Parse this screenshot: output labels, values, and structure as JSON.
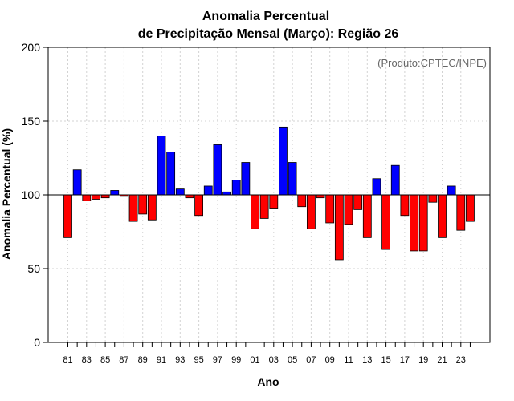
{
  "chart_data": {
    "type": "bar",
    "title_line1": "Anomalia Percentual",
    "title_line2": "de Precipitação Mensal (Março): Região 26",
    "xlabel": "Ano",
    "ylabel": "Anomalia Percentual (%)",
    "credit": "(Produto:CPTEC/INPE)",
    "baseline": 100,
    "ylim": [
      0,
      200
    ],
    "yticks": [
      0,
      50,
      100,
      150,
      200
    ],
    "grid": true,
    "colors": {
      "above": "#0000ff",
      "below": "#ff0000",
      "baseline": "#000000",
      "grid": "#d3d3d3"
    },
    "categories": [
      "1981",
      "1982",
      "1983",
      "1984",
      "1985",
      "1986",
      "1987",
      "1988",
      "1989",
      "1990",
      "1991",
      "1992",
      "1993",
      "1994",
      "1995",
      "1996",
      "1997",
      "1998",
      "1999",
      "2000",
      "2001",
      "2002",
      "2003",
      "2004",
      "2005",
      "2006",
      "2007",
      "2008",
      "2009",
      "2010",
      "2011",
      "2012",
      "2013",
      "2014",
      "2015",
      "2016",
      "2017",
      "2018",
      "2019",
      "2020",
      "2021",
      "2022",
      "2023",
      "2024"
    ],
    "xtick_labels": [
      "81",
      "83",
      "85",
      "87",
      "89",
      "91",
      "93",
      "95",
      "97",
      "99",
      "01",
      "03",
      "05",
      "07",
      "09",
      "11",
      "13",
      "15",
      "17",
      "19",
      "21",
      "23"
    ],
    "values": [
      71,
      117,
      96,
      97,
      98,
      103,
      99,
      82,
      87,
      83,
      140,
      129,
      104,
      98,
      86,
      106,
      134,
      102,
      110,
      122,
      77,
      84,
      91,
      146,
      122,
      92,
      77,
      98,
      81,
      56,
      80,
      90,
      71,
      111,
      63,
      120,
      86,
      62,
      62,
      95,
      71,
      106,
      76,
      82
    ]
  }
}
